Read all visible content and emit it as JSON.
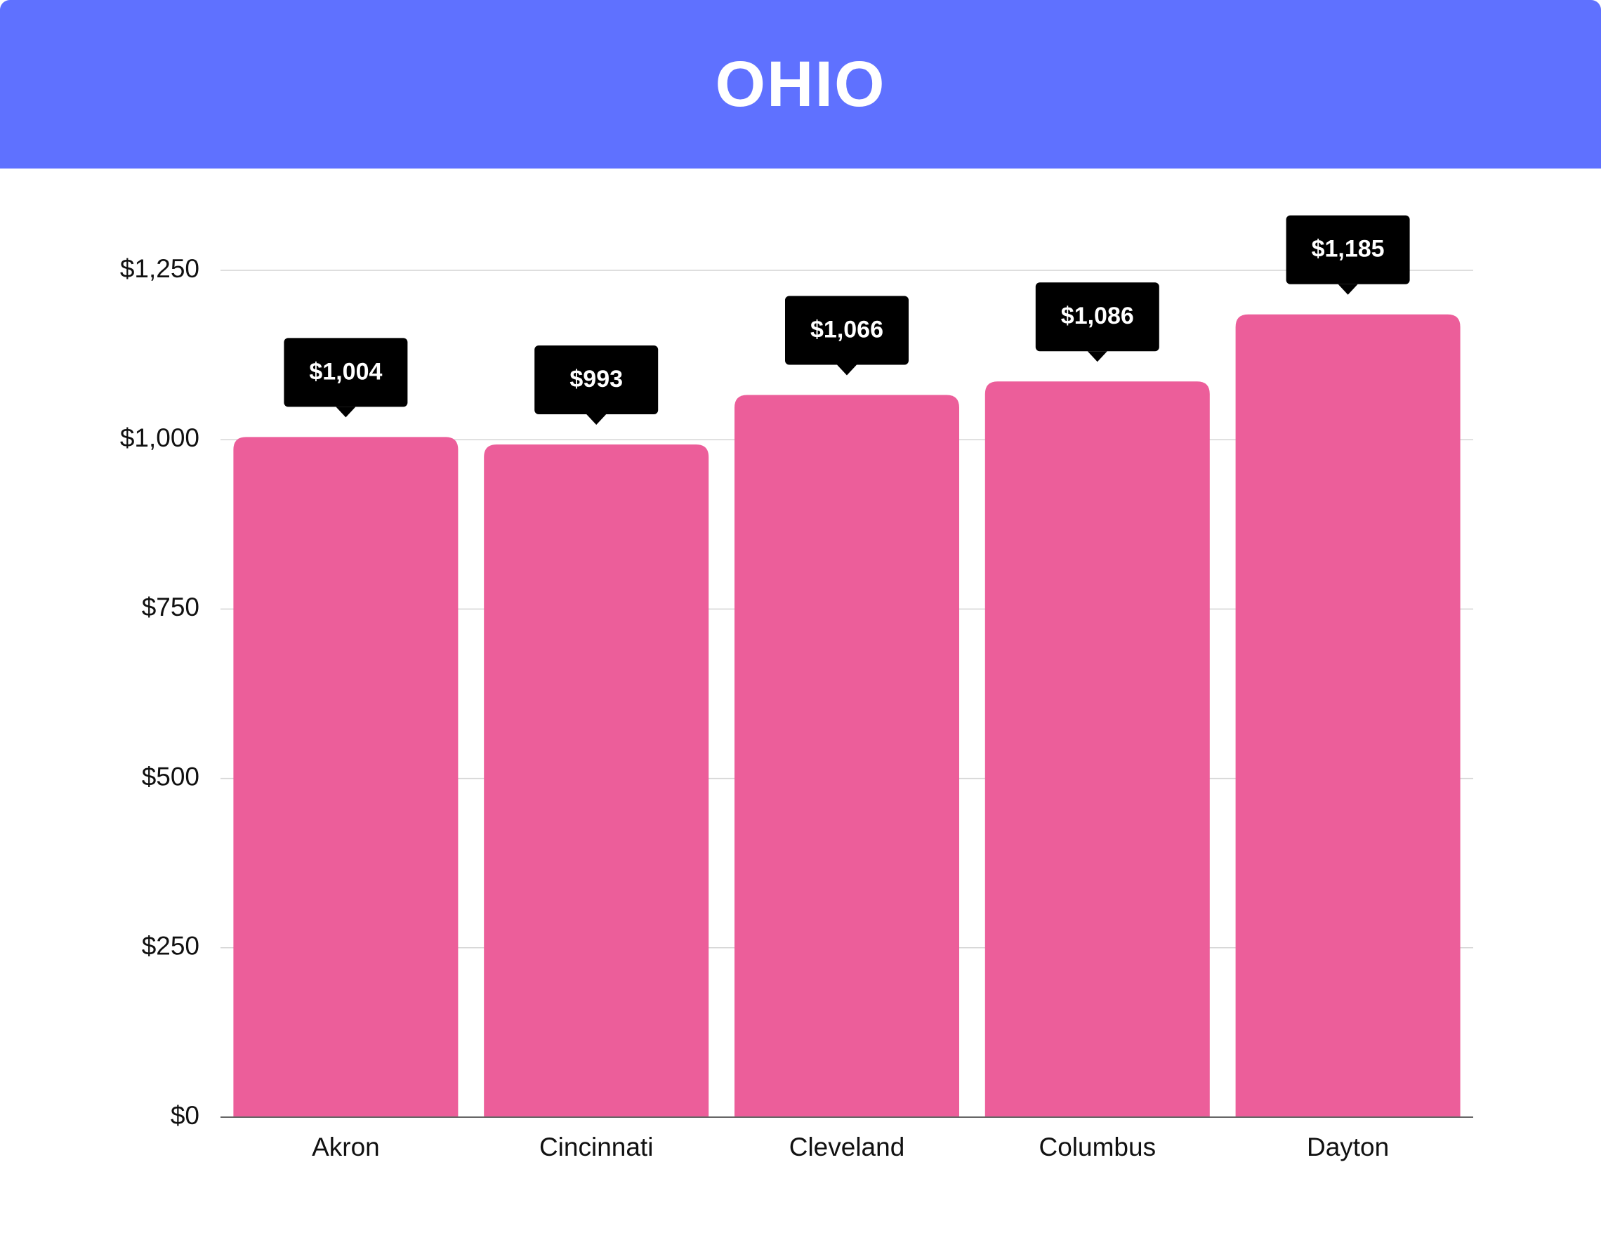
{
  "header": {
    "title": "OHIO"
  },
  "colors": {
    "header_bg": "#5f71ff",
    "bar": "#ec5e9a",
    "label_bg": "#000000",
    "gridline": "#d4d4d4",
    "axis": "#666666"
  },
  "chart_data": {
    "type": "bar",
    "title": "OHIO",
    "xlabel": "",
    "ylabel": "",
    "categories": [
      "Akron",
      "Cincinnati",
      "Cleveland",
      "Columbus",
      "Dayton"
    ],
    "values": [
      1004,
      993,
      1066,
      1086,
      1185
    ],
    "value_labels": [
      "$1,004",
      "$993",
      "$1,066",
      "$1,086",
      "$1,185"
    ],
    "ylim": [
      0,
      1250
    ],
    "yticks": [
      0,
      250,
      500,
      750,
      1000,
      1250
    ],
    "ytick_labels": [
      "$0",
      "$250",
      "$500",
      "$750",
      "$1,000",
      "$1,250"
    ],
    "grid": true,
    "legend": "none"
  }
}
